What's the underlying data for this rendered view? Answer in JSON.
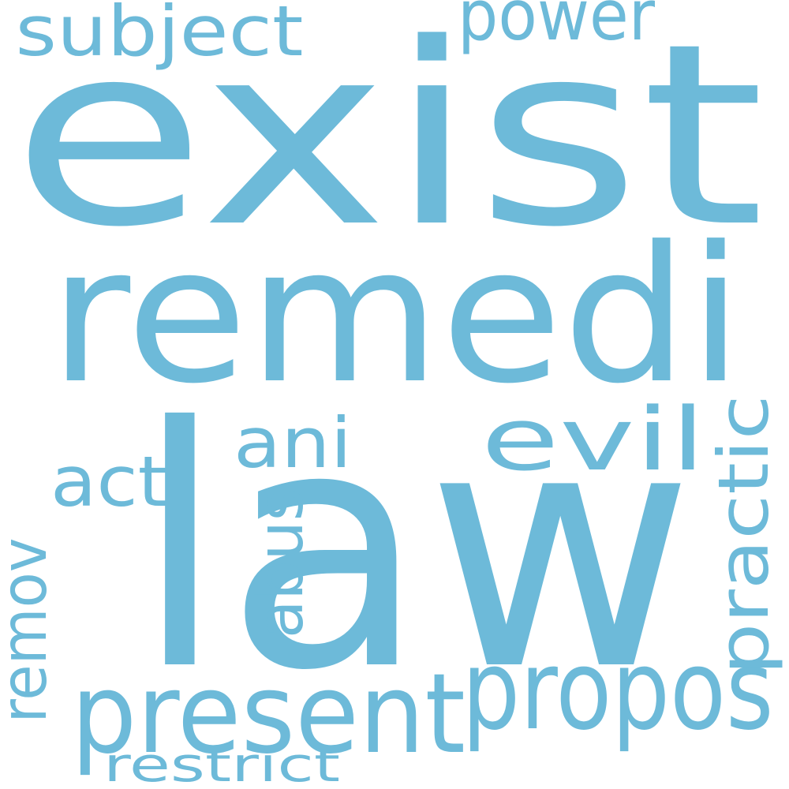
{
  "color": "#6dbad9",
  "words": [
    {
      "text": "exist"
    },
    {
      "text": "law"
    },
    {
      "text": "remedi"
    },
    {
      "text": "propos"
    },
    {
      "text": "present"
    },
    {
      "text": "evil"
    },
    {
      "text": "subject"
    },
    {
      "text": "power"
    },
    {
      "text": "practic"
    },
    {
      "text": "ani"
    },
    {
      "text": "act"
    },
    {
      "text": "abus"
    },
    {
      "text": "remov"
    },
    {
      "text": "restrict"
    }
  ]
}
